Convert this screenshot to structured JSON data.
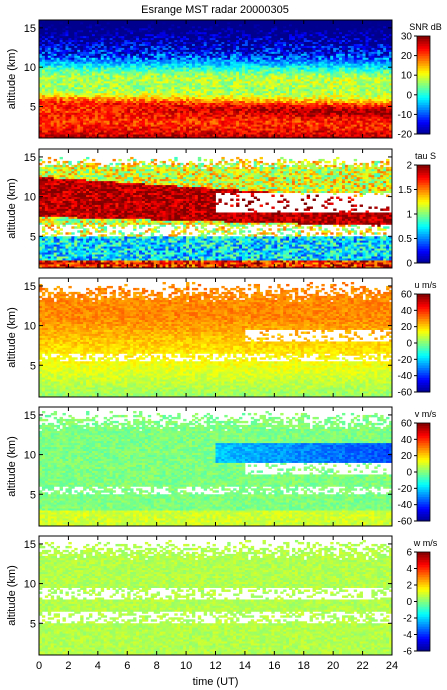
{
  "title": "Esrange MST radar 20000305",
  "colors": {
    "colormap": [
      "#00008f",
      "#0000ff",
      "#0080ff",
      "#00ffff",
      "#80ff80",
      "#ffff00",
      "#ff8000",
      "#ff0000",
      "#800000"
    ]
  },
  "chart_data": [
    {
      "type": "heatmap",
      "title": "Esrange MST radar 20000305",
      "xlabel": "",
      "ylabel": "altitude (km)",
      "xlim": [
        0,
        24
      ],
      "ylim": [
        1,
        16
      ],
      "yticks": [
        "5",
        "10",
        "15"
      ],
      "colorbar": {
        "label": "SNR dB",
        "range": [
          -20,
          30
        ],
        "ticks": [
          "-20",
          "-10",
          "0",
          "10",
          "20",
          "30"
        ]
      },
      "field": "snr",
      "features": "strong SNR near ground (about 30 dB) decreasing with height; enhanced layers around 5-6 km and 8-10 km; noisy background above 12 km"
    },
    {
      "type": "heatmap",
      "title": "",
      "xlabel": "",
      "ylabel": "altitude (km)",
      "xlim": [
        0,
        24
      ],
      "ylim": [
        1,
        16
      ],
      "yticks": [
        "5",
        "10",
        "15"
      ],
      "colorbar": {
        "label": "tau S",
        "range": [
          0,
          2
        ],
        "ticks": [
          "0",
          "0.5",
          "1",
          "1.5",
          "2"
        ]
      },
      "field": "tau",
      "features": "large values (dark red) between 7 and 13 km before 12 UT, descending layer; low values near 3-5 km; gaps where no data"
    },
    {
      "type": "heatmap",
      "title": "",
      "xlabel": "",
      "ylabel": "altitude (km)",
      "xlim": [
        0,
        24
      ],
      "ylim": [
        1,
        16
      ],
      "yticks": [
        "5",
        "10",
        "15"
      ],
      "colorbar": {
        "label": "u m/s",
        "range": [
          -60,
          60
        ],
        "ticks": [
          "-60",
          "-40",
          "-20",
          "0",
          "20",
          "40",
          "60"
        ]
      },
      "field": "u",
      "features": "zonal wind increasing from about 0 m/s near ground to about 30 m/s near 10-11 km"
    },
    {
      "type": "heatmap",
      "title": "",
      "xlabel": "",
      "ylabel": "altitude (km)",
      "xlim": [
        0,
        24
      ],
      "ylim": [
        1,
        16
      ],
      "yticks": [
        "5",
        "10",
        "15"
      ],
      "colorbar": {
        "label": "v m/s",
        "range": [
          -60,
          60
        ],
        "ticks": [
          "-60",
          "-40",
          "-20",
          "0",
          "20",
          "40",
          "60"
        ]
      },
      "field": "v",
      "features": "meridional wind mostly near 0 m/s, negative values (about -30 m/s) near 9-11 km after 14 UT"
    },
    {
      "type": "heatmap",
      "title": "",
      "xlabel": "time (UT)",
      "ylabel": "altitude (km)",
      "xlim": [
        0,
        24
      ],
      "ylim": [
        1,
        16
      ],
      "yticks": [
        "5",
        "10",
        "15"
      ],
      "xticks": [
        "0",
        "2",
        "4",
        "6",
        "8",
        "10",
        "12",
        "14",
        "16",
        "18",
        "20",
        "22",
        "24"
      ],
      "colorbar": {
        "label": "w m/s",
        "range": [
          -6,
          6
        ],
        "ticks": [
          "-6",
          "-4",
          "-2",
          "0",
          "2",
          "4",
          "6"
        ]
      },
      "field": "w",
      "features": "vertical wind near 0 m/s throughout, mostly light green"
    }
  ]
}
